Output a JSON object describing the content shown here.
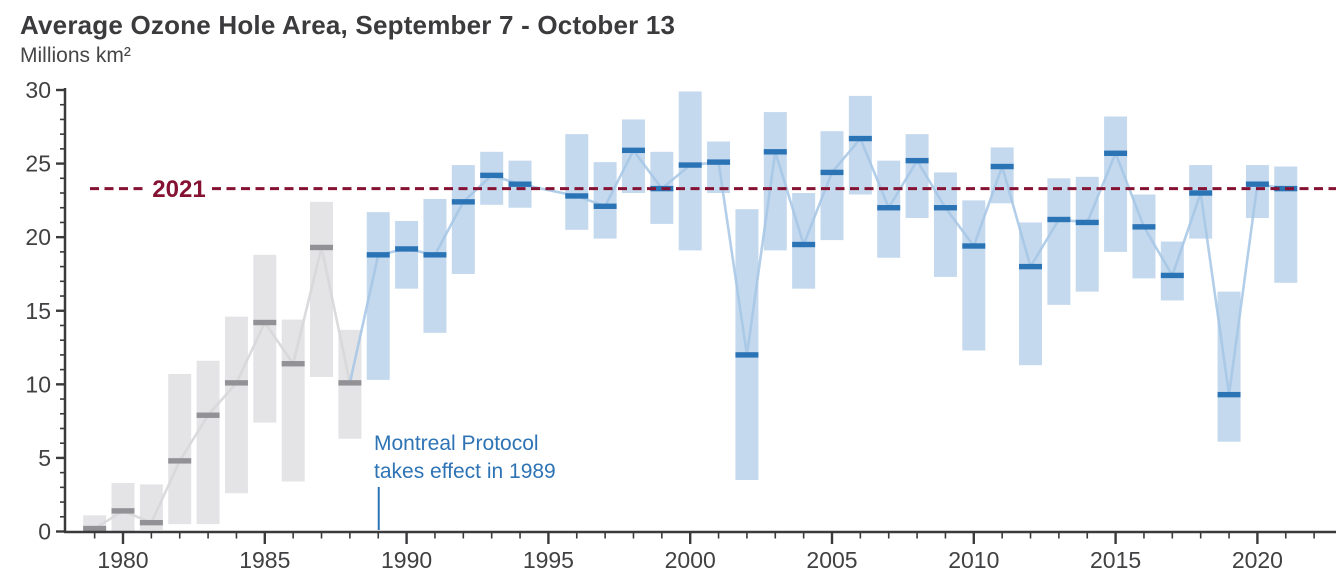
{
  "header": {
    "title": "Average Ozone Hole Area, September 7 - October 13",
    "units": "Millions km²"
  },
  "annotations": {
    "reference_year_label": "2021",
    "montreal_line1": "Montreal Protocol",
    "montreal_line2": "takes effect in 1989"
  },
  "colors": {
    "pre_bar": "#e4e4e6",
    "pre_mean": "#929296",
    "pre_line": "#d7d7d9",
    "post_bar": "#c5d9ee",
    "post_mean": "#2a73b5",
    "post_line": "#a5c6e5",
    "reference_line": "#851232",
    "annotation_blue": "#2e74b5",
    "axis": "#3a3a3c",
    "text": "#414042"
  },
  "chart_data": {
    "type": "range-bar-with-mean",
    "title": "Average Ozone Hole Area, September 7 - October 13",
    "ylabel": "Millions km²",
    "xlabel": "",
    "ylim": [
      0,
      30
    ],
    "y_major_ticks": [
      0,
      5,
      10,
      15,
      20,
      25,
      30
    ],
    "y_minor_step": 1,
    "x_major_ticks": [
      1980,
      1985,
      1990,
      1995,
      2000,
      2005,
      2010,
      2015,
      2020
    ],
    "x_minor_ticks_range": [
      1979,
      2022
    ],
    "grid": false,
    "legend": "none",
    "reference_line": {
      "label": "2021",
      "value": 23.3
    },
    "montreal_marker": {
      "year": 1989,
      "line1": "Montreal Protocol",
      "line2": "takes effect in 1989"
    },
    "no_data_years": [
      1995
    ],
    "era_split_year": 1989,
    "series": [
      {
        "year": 1979,
        "min": 0.0,
        "mean": 0.2,
        "max": 1.1,
        "era": "pre"
      },
      {
        "year": 1980,
        "min": 0.0,
        "mean": 1.4,
        "max": 3.3,
        "era": "pre"
      },
      {
        "year": 1981,
        "min": 0.1,
        "mean": 0.6,
        "max": 3.2,
        "era": "pre"
      },
      {
        "year": 1982,
        "min": 0.5,
        "mean": 4.8,
        "max": 10.7,
        "era": "pre"
      },
      {
        "year": 1983,
        "min": 0.5,
        "mean": 7.9,
        "max": 11.6,
        "era": "pre"
      },
      {
        "year": 1984,
        "min": 2.6,
        "mean": 10.1,
        "max": 14.6,
        "era": "pre"
      },
      {
        "year": 1985,
        "min": 7.4,
        "mean": 14.2,
        "max": 18.8,
        "era": "pre"
      },
      {
        "year": 1986,
        "min": 3.4,
        "mean": 11.4,
        "max": 14.4,
        "era": "pre"
      },
      {
        "year": 1987,
        "min": 10.5,
        "mean": 19.3,
        "max": 22.4,
        "era": "pre"
      },
      {
        "year": 1988,
        "min": 6.3,
        "mean": 10.1,
        "max": 13.7,
        "era": "pre"
      },
      {
        "year": 1989,
        "min": 10.3,
        "mean": 18.8,
        "max": 21.7,
        "era": "post"
      },
      {
        "year": 1990,
        "min": 16.5,
        "mean": 19.2,
        "max": 21.1,
        "era": "post"
      },
      {
        "year": 1991,
        "min": 13.5,
        "mean": 18.8,
        "max": 22.6,
        "era": "post"
      },
      {
        "year": 1992,
        "min": 17.5,
        "mean": 22.4,
        "max": 24.9,
        "era": "post"
      },
      {
        "year": 1993,
        "min": 22.2,
        "mean": 24.2,
        "max": 25.8,
        "era": "post"
      },
      {
        "year": 1994,
        "min": 22.0,
        "mean": 23.6,
        "max": 25.2,
        "era": "post"
      },
      {
        "year": 1995,
        "min": null,
        "mean": null,
        "max": null,
        "era": "post"
      },
      {
        "year": 1996,
        "min": 20.5,
        "mean": 22.8,
        "max": 27.0,
        "era": "post"
      },
      {
        "year": 1997,
        "min": 19.9,
        "mean": 22.1,
        "max": 25.1,
        "era": "post"
      },
      {
        "year": 1998,
        "min": 23.0,
        "mean": 25.9,
        "max": 28.0,
        "era": "post"
      },
      {
        "year": 1999,
        "min": 20.9,
        "mean": 23.3,
        "max": 25.8,
        "era": "post"
      },
      {
        "year": 2000,
        "min": 19.1,
        "mean": 24.9,
        "max": 29.9,
        "era": "post"
      },
      {
        "year": 2001,
        "min": 23.0,
        "mean": 25.1,
        "max": 26.5,
        "era": "post"
      },
      {
        "year": 2002,
        "min": 3.5,
        "mean": 12.0,
        "max": 21.9,
        "era": "post"
      },
      {
        "year": 2003,
        "min": 19.1,
        "mean": 25.8,
        "max": 28.5,
        "era": "post"
      },
      {
        "year": 2004,
        "min": 16.5,
        "mean": 19.5,
        "max": 23.0,
        "era": "post"
      },
      {
        "year": 2005,
        "min": 19.8,
        "mean": 24.4,
        "max": 27.2,
        "era": "post"
      },
      {
        "year": 2006,
        "min": 22.9,
        "mean": 26.7,
        "max": 29.6,
        "era": "post"
      },
      {
        "year": 2007,
        "min": 18.6,
        "mean": 22.0,
        "max": 25.2,
        "era": "post"
      },
      {
        "year": 2008,
        "min": 21.3,
        "mean": 25.2,
        "max": 27.0,
        "era": "post"
      },
      {
        "year": 2009,
        "min": 17.3,
        "mean": 22.0,
        "max": 24.4,
        "era": "post"
      },
      {
        "year": 2010,
        "min": 12.3,
        "mean": 19.4,
        "max": 22.5,
        "era": "post"
      },
      {
        "year": 2011,
        "min": 22.3,
        "mean": 24.8,
        "max": 26.1,
        "era": "post"
      },
      {
        "year": 2012,
        "min": 11.3,
        "mean": 18.0,
        "max": 21.0,
        "era": "post"
      },
      {
        "year": 2013,
        "min": 15.4,
        "mean": 21.2,
        "max": 24.0,
        "era": "post"
      },
      {
        "year": 2014,
        "min": 16.3,
        "mean": 21.0,
        "max": 24.1,
        "era": "post"
      },
      {
        "year": 2015,
        "min": 19.0,
        "mean": 25.7,
        "max": 28.2,
        "era": "post"
      },
      {
        "year": 2016,
        "min": 17.2,
        "mean": 20.7,
        "max": 22.9,
        "era": "post"
      },
      {
        "year": 2017,
        "min": 15.7,
        "mean": 17.4,
        "max": 19.7,
        "era": "post"
      },
      {
        "year": 2018,
        "min": 19.9,
        "mean": 23.0,
        "max": 24.9,
        "era": "post"
      },
      {
        "year": 2019,
        "min": 6.1,
        "mean": 9.3,
        "max": 16.3,
        "era": "post"
      },
      {
        "year": 2020,
        "min": 21.3,
        "mean": 23.6,
        "max": 24.9,
        "era": "post"
      },
      {
        "year": 2021,
        "min": 16.9,
        "mean": 23.3,
        "max": 24.8,
        "era": "post"
      }
    ]
  }
}
